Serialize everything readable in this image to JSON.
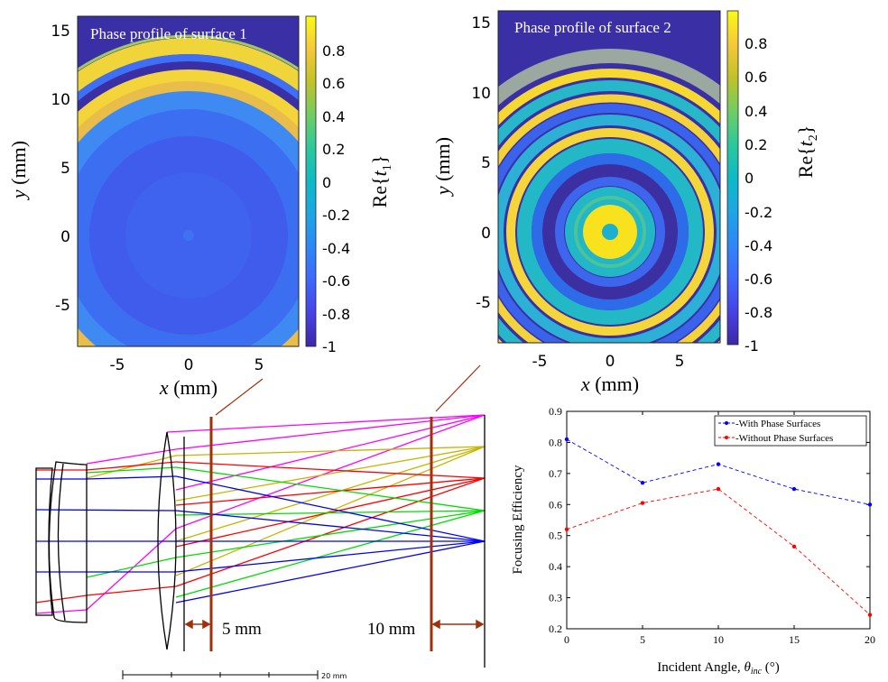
{
  "chart_data": [
    {
      "type": "heatmap",
      "title": "Phase profile of surface 1",
      "xlabel_var": "x",
      "xlabel_unit": " (mm)",
      "ylabel_var": "y",
      "ylabel_unit": " (mm)",
      "xticks": [
        "-5",
        "0",
        "5"
      ],
      "yticks": [
        "15",
        "10",
        "5",
        "0",
        "-5"
      ],
      "xlim": [
        -7.8,
        7.8
      ],
      "ylim": [
        -8,
        16
      ],
      "colorbar_label": "Re{t1}",
      "colorbar_label_main": "Re{",
      "colorbar_label_var": "t",
      "colorbar_label_sub": "1",
      "colorbar_label_end": "}",
      "colorbar_ticks": [
        "0.8",
        "0.6",
        "0.4",
        "0.2",
        "0",
        "-0.2",
        "-0.4",
        "-0.6",
        "-0.8",
        "-1"
      ],
      "clim": [
        -1,
        1
      ],
      "colormap": "parula"
    },
    {
      "type": "heatmap",
      "title": "Phase profile of surface 2",
      "xlabel_var": "x",
      "xlabel_unit": " (mm)",
      "ylabel_var": "y",
      "ylabel_unit": " (mm)",
      "xticks": [
        "-5",
        "0",
        "5"
      ],
      "yticks": [
        "15",
        "10",
        "5",
        "0",
        "-5"
      ],
      "xlim": [
        -8.2,
        8.2
      ],
      "ylim": [
        -8,
        16
      ],
      "colorbar_label": "Re{t2}",
      "colorbar_label_main": "Re{",
      "colorbar_label_var": "t",
      "colorbar_label_sub": "2",
      "colorbar_label_end": "}",
      "colorbar_ticks": [
        "0.8",
        "0.6",
        "0.4",
        "0.2",
        "0",
        "-0.2",
        "-0.4",
        "-0.6",
        "-0.8",
        "-1"
      ],
      "clim": [
        -1,
        1
      ],
      "colormap": "parula"
    },
    {
      "type": "line",
      "x": [
        0,
        5,
        10,
        15,
        20
      ],
      "series": [
        {
          "name": "-With Phase Surfaces",
          "values": [
            0.81,
            0.67,
            0.73,
            0.65,
            0.6
          ],
          "color": "#0000ff"
        },
        {
          "name": "-Without Phase Surfaces",
          "values": [
            0.52,
            0.605,
            0.65,
            0.465,
            0.245
          ],
          "color": "#ff0000"
        }
      ],
      "xlabel_text": "Incident Angle, ",
      "xlabel_var": "θ",
      "xlabel_sub": "inc",
      "xlabel_unit": " (°)",
      "ylabel": "Focusing Efficiency",
      "xlim": [
        0,
        20
      ],
      "ylim": [
        0.2,
        0.9
      ],
      "xticks": [
        0,
        5,
        10,
        15,
        20
      ],
      "yticks": [
        0.2,
        0.3,
        0.4,
        0.5,
        0.6,
        0.7,
        0.8,
        0.9
      ],
      "legend_position": "top-right",
      "grid": false
    }
  ],
  "diagram": {
    "label_5mm": "5 mm",
    "label_10mm": "10 mm",
    "scale_label": "20 mm",
    "ray_colors": [
      "#ff00ff",
      "#c8b400",
      "#ff0000",
      "#00dd00",
      "#0000ff"
    ],
    "marker_color": "#a0300a"
  }
}
